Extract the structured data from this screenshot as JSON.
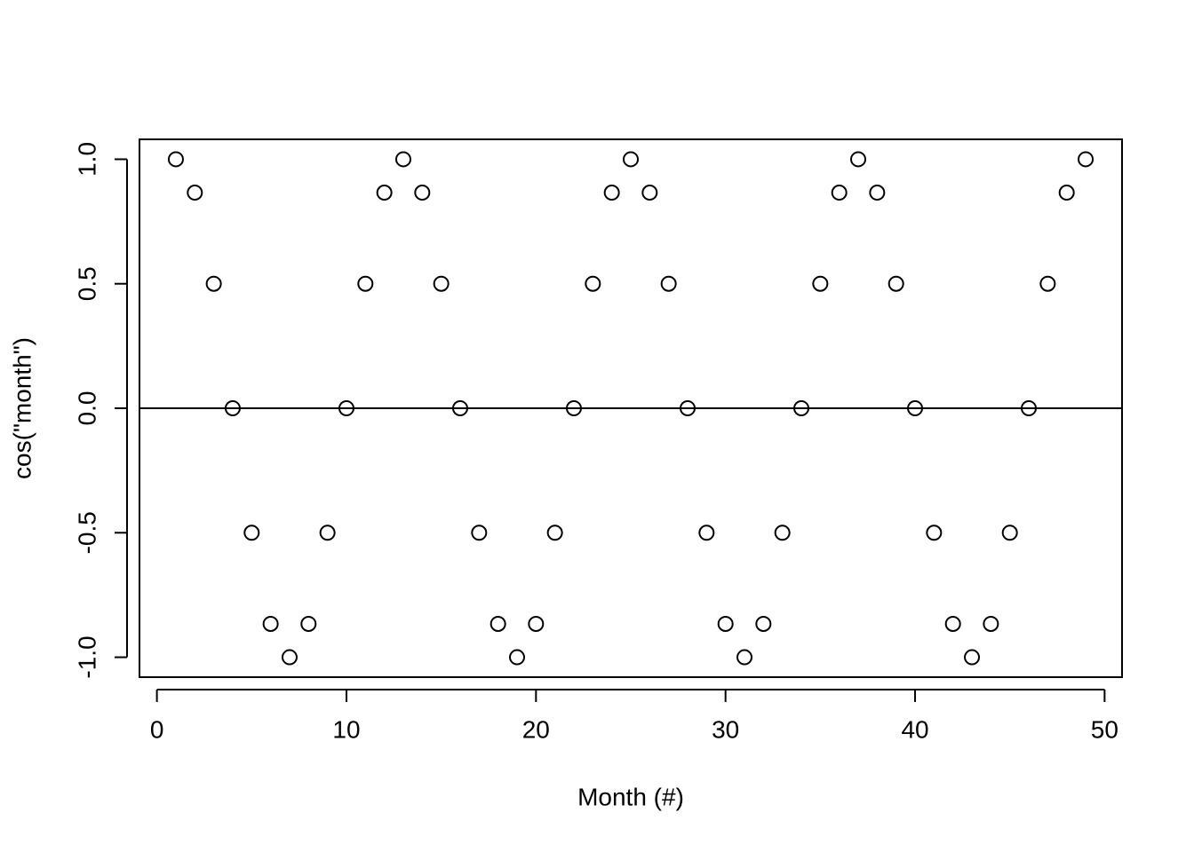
{
  "chart_data": {
    "type": "scatter",
    "x_label": "Month (#)",
    "y_label": "cos(\"month\")",
    "series": [
      {
        "x": [
          1,
          2,
          3,
          4,
          5,
          6,
          7,
          8,
          9,
          10,
          11,
          12,
          13,
          14,
          15,
          16,
          17,
          18,
          19,
          20,
          21,
          22,
          23,
          24,
          25,
          26,
          27,
          28,
          29,
          30,
          31,
          32,
          33,
          34,
          35,
          36,
          37,
          38,
          39,
          40,
          41,
          42,
          43,
          44,
          45,
          46,
          47,
          48,
          49
        ],
        "values": [
          1,
          0.866,
          0.5,
          0,
          -0.5,
          -0.866,
          -1,
          -0.866,
          -0.5,
          0,
          0.5,
          0.866,
          1,
          0.866,
          0.5,
          0,
          -0.5,
          -0.866,
          -1,
          -0.866,
          -0.5,
          0,
          0.5,
          0.866,
          1,
          0.866,
          0.5,
          0,
          -0.5,
          -0.866,
          -1,
          -0.866,
          -0.5,
          0,
          0.5,
          0.866,
          1,
          0.866,
          0.5,
          0,
          -0.5,
          -0.866,
          -1,
          -0.866,
          -0.5,
          0,
          0.5,
          0.866,
          1
        ],
        "color": "#000000"
      }
    ],
    "hline": 0,
    "xlim": [
      -0.92,
      50.92
    ],
    "xticks": [
      0,
      10,
      20,
      30,
      40,
      50
    ],
    "ylim": [
      -1.08,
      1.08
    ],
    "yticks": [
      {
        "value": -1,
        "label": "-1.0"
      },
      {
        "value": -0.5,
        "label": "-0.5"
      },
      {
        "value": 0,
        "label": "0.0"
      },
      {
        "value": 0.5,
        "label": "0.5"
      },
      {
        "value": 1,
        "label": "1.0"
      }
    ]
  }
}
